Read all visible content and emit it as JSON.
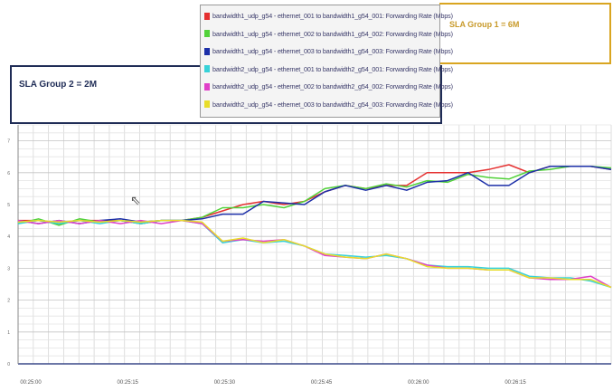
{
  "chart_data": {
    "type": "line",
    "x_tick_labels": [
      "00:25:00",
      "00:25:15",
      "00:25:30",
      "00:25:45",
      "00:26:00",
      "00:26:15"
    ],
    "y_tick_labels": [
      "0",
      "1",
      "2",
      "3",
      "4",
      "5",
      "6",
      "7"
    ],
    "ylim": [
      0,
      7.5
    ],
    "grid": true,
    "legend_placement": "top-center",
    "points_per_series": 30,
    "series": [
      {
        "name": "bandwidth1_udp_g54 - ethernet_001 to bandwidth1_g54_001: Forwarding Rate (Mbps)",
        "color": "#e53030",
        "values": [
          4.5,
          4.5,
          4.4,
          4.5,
          4.5,
          4.5,
          4.4,
          4.5,
          4.5,
          4.6,
          4.8,
          5.0,
          5.1,
          5.0,
          5.1,
          5.4,
          5.6,
          5.5,
          5.6,
          5.6,
          6.0,
          6.0,
          6.0,
          6.1,
          6.25,
          6.0,
          6.2,
          6.2,
          6.2,
          6.1
        ]
      },
      {
        "name": "bandwidth1_udp_g54 - ethernet_002 to bandwidth1_g54_002: Forwarding Rate (Mbps)",
        "color": "#52d23a",
        "values": [
          4.4,
          4.55,
          4.35,
          4.55,
          4.45,
          4.5,
          4.4,
          4.5,
          4.5,
          4.6,
          4.9,
          4.9,
          5.0,
          4.9,
          5.1,
          5.5,
          5.6,
          5.5,
          5.65,
          5.55,
          5.75,
          5.7,
          5.95,
          5.85,
          5.8,
          6.05,
          6.1,
          6.2,
          6.2,
          6.15
        ]
      },
      {
        "name": "bandwidth1_udp_g54 - ethernet_003 to bandwidth1_g54_003: Forwarding Rate (Mbps)",
        "color": "#1c2fa8",
        "values": [
          4.5,
          4.4,
          4.5,
          4.4,
          4.5,
          4.55,
          4.45,
          4.5,
          4.5,
          4.55,
          4.7,
          4.7,
          5.1,
          5.05,
          5.0,
          5.4,
          5.6,
          5.45,
          5.6,
          5.45,
          5.7,
          5.75,
          6.0,
          5.6,
          5.6,
          6.0,
          6.2,
          6.2,
          6.2,
          6.1
        ]
      },
      {
        "name": "bandwidth2_udp_g54 - ethernet_001 to bandwidth2_g54_001: Forwarding Rate (Mbps)",
        "color": "#37d2d8",
        "values": [
          4.4,
          4.5,
          4.4,
          4.5,
          4.4,
          4.5,
          4.4,
          4.5,
          4.5,
          4.4,
          3.8,
          3.9,
          3.8,
          3.85,
          3.7,
          3.45,
          3.4,
          3.35,
          3.4,
          3.3,
          3.1,
          3.05,
          3.05,
          3.0,
          3.0,
          2.75,
          2.7,
          2.7,
          2.6,
          2.4
        ]
      },
      {
        "name": "bandwidth2_udp_g54 - ethernet_002 to bandwidth2_g54_002: Forwarding Rate (Mbps)",
        "color": "#e040c8",
        "values": [
          4.5,
          4.4,
          4.5,
          4.4,
          4.5,
          4.4,
          4.5,
          4.4,
          4.5,
          4.4,
          3.85,
          3.9,
          3.85,
          3.9,
          3.7,
          3.4,
          3.35,
          3.3,
          3.45,
          3.3,
          3.1,
          3.0,
          3.0,
          2.95,
          2.95,
          2.7,
          2.65,
          2.65,
          2.75,
          2.4
        ]
      },
      {
        "name": "bandwidth2_udp_g54 - ethernet_003 to bandwidth2_g54_003: Forwarding Rate (Mbps)",
        "color": "#e8dd2a",
        "values": [
          4.45,
          4.5,
          4.45,
          4.5,
          4.45,
          4.5,
          4.45,
          4.5,
          4.5,
          4.45,
          3.85,
          3.95,
          3.8,
          3.9,
          3.7,
          3.45,
          3.35,
          3.3,
          3.45,
          3.3,
          3.05,
          3.0,
          3.0,
          2.95,
          2.95,
          2.7,
          2.7,
          2.65,
          2.65,
          2.4
        ]
      }
    ]
  },
  "annotations": {
    "sla_group_1": "SLA Group 1 = 6M",
    "sla_group_2": "SLA Group 2 = 2M",
    "cursor_glyph": "⇖"
  }
}
